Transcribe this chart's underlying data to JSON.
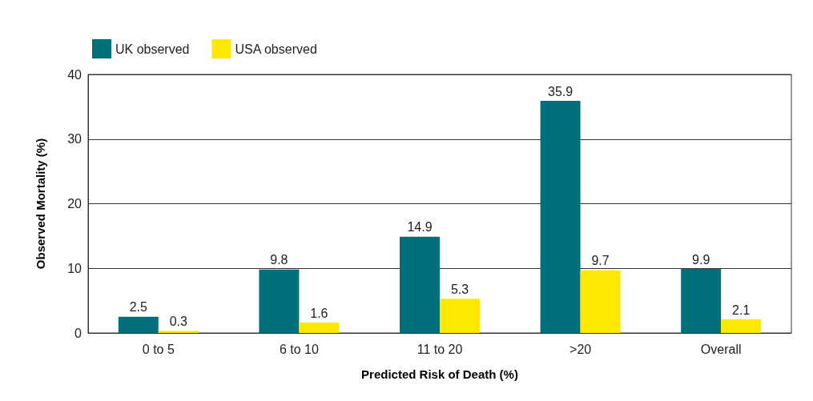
{
  "chart_data": {
    "type": "bar",
    "xlabel": "Predicted Risk of Death (%)",
    "ylabel": "Observed Mortality (%)",
    "categories": [
      "0 to 5",
      "6 to 10",
      "11 to 20",
      ">20",
      "Overall"
    ],
    "series": [
      {
        "name": "UK observed",
        "color": "#00707a",
        "values": [
          2.5,
          9.8,
          14.9,
          35.9,
          9.9
        ]
      },
      {
        "name": "USA observed",
        "color": "#ffe800",
        "values": [
          0.3,
          1.6,
          5.3,
          9.7,
          2.1
        ]
      }
    ],
    "ylim": [
      0,
      40
    ],
    "yticks": [
      0,
      10,
      20,
      30,
      40
    ],
    "grid": "y",
    "legend": "top left",
    "data_labels": true
  }
}
